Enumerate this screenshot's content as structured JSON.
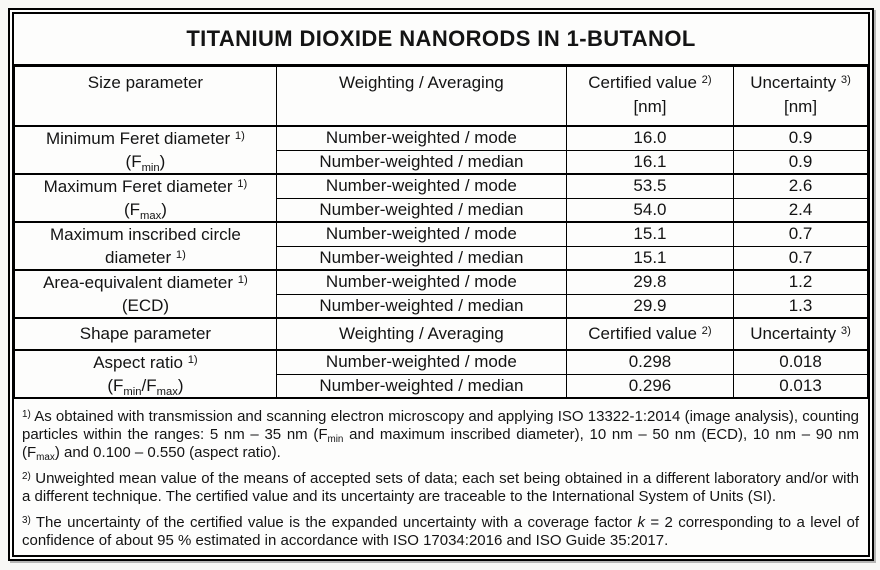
{
  "title": "TITANIUM DIOXIDE NANORODS IN 1-BUTANOL",
  "size_header": {
    "param": [
      {
        "y": "t",
        "s": "Size parameter"
      }
    ],
    "weighting": [
      {
        "y": "t",
        "s": "Weighting / Averaging"
      }
    ],
    "certified": [
      {
        "y": "t",
        "s": "Certified value "
      },
      {
        "y": "sup",
        "s": "2)"
      }
    ],
    "certified_unit": "[nm]",
    "uncertainty": [
      {
        "y": "t",
        "s": "Uncertainty "
      },
      {
        "y": "sup",
        "s": "3)"
      }
    ],
    "uncertainty_unit": "[nm]"
  },
  "groups": [
    {
      "label": [
        [
          {
            "y": "t",
            "s": "Minimum Feret diameter "
          },
          {
            "y": "sup",
            "s": "1)"
          }
        ],
        [
          {
            "y": "t",
            "s": "(F"
          },
          {
            "y": "sub",
            "s": "min"
          },
          {
            "y": "t",
            "s": ")"
          }
        ]
      ],
      "rows": [
        {
          "weighting": "Number-weighted / mode",
          "value": "16.0",
          "uncertainty": "0.9"
        },
        {
          "weighting": "Number-weighted / median",
          "value": "16.1",
          "uncertainty": "0.9"
        }
      ]
    },
    {
      "label": [
        [
          {
            "y": "t",
            "s": "Maximum Feret diameter "
          },
          {
            "y": "sup",
            "s": "1)"
          }
        ],
        [
          {
            "y": "t",
            "s": "(F"
          },
          {
            "y": "sub",
            "s": "max"
          },
          {
            "y": "t",
            "s": ")"
          }
        ]
      ],
      "rows": [
        {
          "weighting": "Number-weighted / mode",
          "value": "53.5",
          "uncertainty": "2.6"
        },
        {
          "weighting": "Number-weighted / median",
          "value": "54.0",
          "uncertainty": "2.4"
        }
      ]
    },
    {
      "label": [
        [
          {
            "y": "t",
            "s": "Maximum inscribed circle"
          }
        ],
        [
          {
            "y": "t",
            "s": "diameter "
          },
          {
            "y": "sup",
            "s": "1)"
          }
        ]
      ],
      "rows": [
        {
          "weighting": "Number-weighted / mode",
          "value": "15.1",
          "uncertainty": "0.7"
        },
        {
          "weighting": "Number-weighted / median",
          "value": "15.1",
          "uncertainty": "0.7"
        }
      ]
    },
    {
      "label": [
        [
          {
            "y": "t",
            "s": "Area-equivalent diameter "
          },
          {
            "y": "sup",
            "s": "1)"
          }
        ],
        [
          {
            "y": "t",
            "s": "(ECD)"
          }
        ]
      ],
      "rows": [
        {
          "weighting": "Number-weighted / mode",
          "value": "29.8",
          "uncertainty": "1.2"
        },
        {
          "weighting": "Number-weighted / median",
          "value": "29.9",
          "uncertainty": "1.3"
        }
      ]
    }
  ],
  "shape_header": {
    "param": [
      {
        "y": "t",
        "s": "Shape parameter"
      }
    ],
    "weighting": [
      {
        "y": "t",
        "s": "Weighting / Averaging"
      }
    ],
    "certified": [
      {
        "y": "t",
        "s": "Certified value "
      },
      {
        "y": "sup",
        "s": "2)"
      }
    ],
    "uncertainty": [
      {
        "y": "t",
        "s": "Uncertainty "
      },
      {
        "y": "sup",
        "s": "3)"
      }
    ]
  },
  "shape_group": {
    "label": [
      [
        {
          "y": "t",
          "s": "Aspect ratio "
        },
        {
          "y": "sup",
          "s": "1)"
        }
      ],
      [
        {
          "y": "t",
          "s": "(F"
        },
        {
          "y": "sub",
          "s": "min"
        },
        {
          "y": "t",
          "s": "/F"
        },
        {
          "y": "sub",
          "s": "max"
        },
        {
          "y": "t",
          "s": ")"
        }
      ]
    ],
    "rows": [
      {
        "weighting": "Number-weighted / mode",
        "value": "0.298",
        "uncertainty": "0.018"
      },
      {
        "weighting": "Number-weighted / median",
        "value": "0.296",
        "uncertainty": "0.013"
      }
    ]
  },
  "footnotes": [
    [
      {
        "y": "sup",
        "s": "1)"
      },
      {
        "y": "t",
        "s": " As obtained with transmission and scanning electron microscopy and applying ISO 13322-1:2014 (image analysis), counting particles within the ranges: 5 nm – 35 nm (F"
      },
      {
        "y": "sub",
        "s": "min"
      },
      {
        "y": "t",
        "s": " and maximum inscribed diameter), 10 nm – 50 nm (ECD), 10 nm – 90 nm (F"
      },
      {
        "y": "sub",
        "s": "max"
      },
      {
        "y": "t",
        "s": ") and 0.100 – 0.550 (aspect ratio)."
      }
    ],
    [
      {
        "y": "sup",
        "s": "2)"
      },
      {
        "y": "t",
        "s": " Unweighted mean value of the means of accepted sets of data; each set being obtained in a different laboratory and/or with a different technique. The certified value and its uncertainty are traceable to the International System of Units (SI)."
      }
    ],
    [
      {
        "y": "sup",
        "s": "3)"
      },
      {
        "y": "t",
        "s": " The uncertainty of the certified value is the expanded uncertainty with a coverage factor "
      },
      {
        "y": "i",
        "s": "k"
      },
      {
        "y": "t",
        "s": " = 2 corresponding to a level of confidence of about 95 % estimated in accordance with ISO 17034:2016 and ISO Guide 35:2017."
      }
    ]
  ]
}
